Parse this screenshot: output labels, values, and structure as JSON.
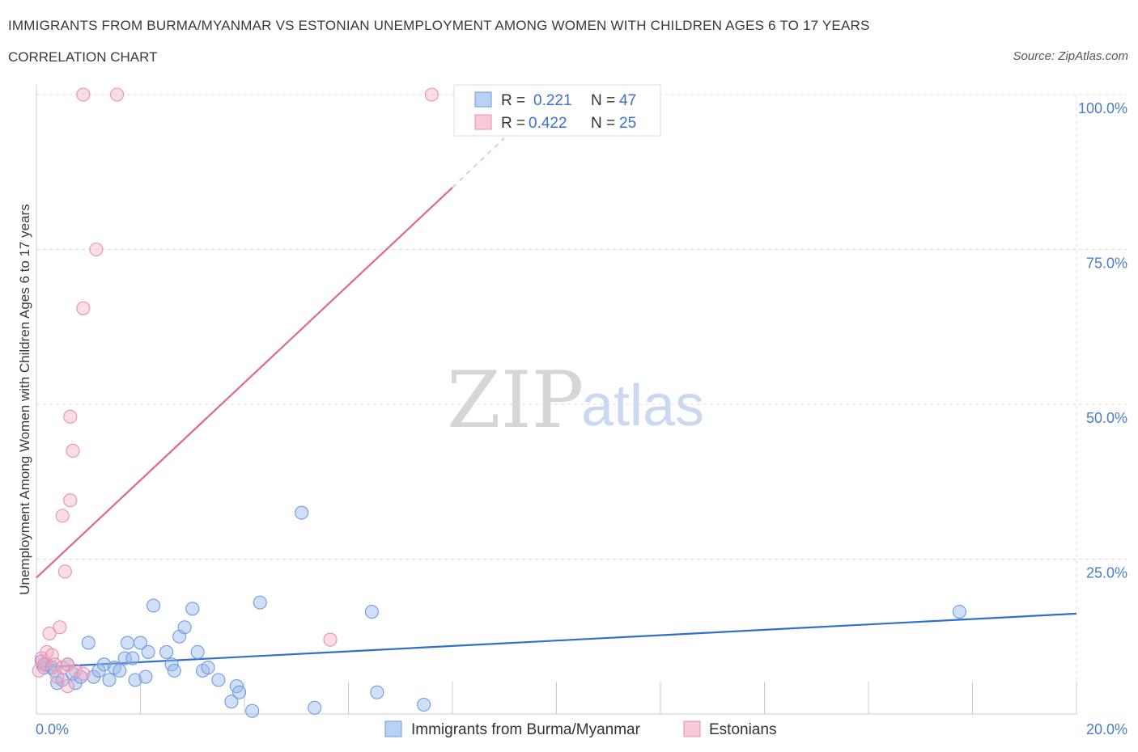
{
  "header": {
    "title": "IMMIGRANTS FROM BURMA/MYANMAR VS ESTONIAN UNEMPLOYMENT AMONG WOMEN WITH CHILDREN AGES 6 TO 17 YEARS",
    "subtitle": "CORRELATION CHART",
    "source": "Source: ZipAtlas.com"
  },
  "watermark": {
    "zip": "ZIP",
    "atlas": "atlas"
  },
  "legend": {
    "r_label": "R =",
    "n_label": "N =",
    "series": [
      {
        "r": "0.221",
        "n": "47"
      },
      {
        "r": "0.422",
        "n": "25"
      }
    ]
  },
  "chart_data": {
    "type": "scatter",
    "ylabel": "Unemployment Among Women with Children Ages 6 to 17 years",
    "xlim": [
      0,
      20
    ],
    "ylim": [
      0,
      100
    ],
    "x_tick_labels": [
      "0.0%",
      "20.0%"
    ],
    "y_tick_labels": [
      "25.0%",
      "50.0%",
      "75.0%",
      "100.0%"
    ],
    "y_ticks": [
      25,
      50,
      75,
      100
    ],
    "colors": {
      "blue": "#5b8fdc",
      "pink": "#e77fa3",
      "blue_line": "#2f6fcc",
      "pink_line": "#e0678f"
    },
    "series": [
      {
        "name": "Immigrants from Burma/Myanmar",
        "color": "blue",
        "points": [
          [
            0.1,
            8.5
          ],
          [
            0.15,
            7.5
          ],
          [
            0.2,
            8.0
          ],
          [
            0.3,
            7.5
          ],
          [
            0.35,
            7.0
          ],
          [
            0.4,
            5.0
          ],
          [
            0.5,
            5.5
          ],
          [
            0.6,
            8.0
          ],
          [
            0.7,
            6.5
          ],
          [
            0.75,
            5.0
          ],
          [
            0.85,
            6.0
          ],
          [
            1.0,
            11.5
          ],
          [
            1.1,
            6.0
          ],
          [
            1.2,
            7.0
          ],
          [
            1.3,
            8.0
          ],
          [
            1.4,
            5.5
          ],
          [
            1.5,
            7.5
          ],
          [
            1.6,
            7.0
          ],
          [
            1.7,
            9.0
          ],
          [
            1.75,
            11.5
          ],
          [
            1.85,
            9.0
          ],
          [
            1.9,
            5.5
          ],
          [
            2.0,
            11.5
          ],
          [
            2.1,
            6.0
          ],
          [
            2.15,
            10.0
          ],
          [
            2.25,
            17.5
          ],
          [
            2.5,
            10.0
          ],
          [
            2.6,
            8.0
          ],
          [
            2.65,
            7.0
          ],
          [
            2.75,
            12.5
          ],
          [
            2.85,
            14.0
          ],
          [
            3.0,
            17.0
          ],
          [
            3.1,
            10.0
          ],
          [
            3.2,
            7.0
          ],
          [
            3.3,
            7.5
          ],
          [
            3.5,
            5.5
          ],
          [
            3.75,
            2.0
          ],
          [
            3.85,
            4.5
          ],
          [
            3.9,
            3.5
          ],
          [
            4.15,
            0.5
          ],
          [
            4.3,
            18.0
          ],
          [
            5.1,
            32.5
          ],
          [
            5.35,
            1.0
          ],
          [
            6.45,
            16.5
          ],
          [
            6.55,
            3.5
          ],
          [
            7.45,
            1.5
          ],
          [
            17.75,
            16.5
          ]
        ]
      },
      {
        "name": "Estonians",
        "color": "pink",
        "points": [
          [
            0.05,
            7.0
          ],
          [
            0.1,
            9.0
          ],
          [
            0.15,
            8.0
          ],
          [
            0.2,
            10.0
          ],
          [
            0.25,
            13.0
          ],
          [
            0.3,
            9.5
          ],
          [
            0.35,
            8.0
          ],
          [
            0.4,
            6.0
          ],
          [
            0.45,
            14.0
          ],
          [
            0.5,
            32.0
          ],
          [
            0.5,
            7.5
          ],
          [
            0.55,
            23.0
          ],
          [
            0.6,
            8.0
          ],
          [
            0.6,
            4.5
          ],
          [
            0.65,
            34.5
          ],
          [
            0.65,
            48.0
          ],
          [
            0.7,
            42.5
          ],
          [
            0.75,
            7.0
          ],
          [
            0.9,
            6.5
          ],
          [
            1.15,
            75.0
          ],
          [
            0.9,
            100.0
          ],
          [
            0.9,
            65.5
          ],
          [
            1.55,
            100.0
          ],
          [
            5.65,
            12.0
          ],
          [
            7.6,
            100.0
          ]
        ]
      }
    ],
    "trend_lines": [
      {
        "series": "Immigrants from Burma/Myanmar",
        "x": [
          0,
          20
        ],
        "y": [
          7.5,
          16.2
        ]
      },
      {
        "series": "Estonians",
        "x": [
          0,
          8.0
        ],
        "y": [
          22.0,
          85.0
        ],
        "dashed_extension_x": [
          8.0,
          9.0
        ],
        "dashed_extension_y": [
          85.0,
          93.0
        ]
      }
    ]
  }
}
